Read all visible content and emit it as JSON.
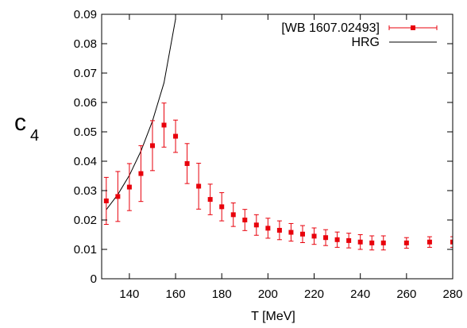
{
  "chart_data": {
    "type": "scatter",
    "title": "",
    "xlabel": "T [MeV]",
    "ylabel": {
      "main": "c",
      "sub": "4"
    },
    "xlim": [
      128,
      280
    ],
    "ylim": [
      0,
      0.09
    ],
    "x_ticks": [
      140,
      160,
      180,
      200,
      220,
      240,
      260,
      280
    ],
    "y_ticks": [
      0,
      0.01,
      0.02,
      0.03,
      0.04,
      0.05,
      0.06,
      0.07,
      0.08,
      0.09
    ],
    "x_tick_labels": [
      "140",
      "160",
      "180",
      "200",
      "220",
      "240",
      "260",
      "280"
    ],
    "y_tick_labels": [
      "0",
      "0.01",
      "0.02",
      "0.03",
      "0.04",
      "0.05",
      "0.06",
      "0.07",
      "0.08",
      "0.09"
    ],
    "grid": false,
    "legend_position": "top-right",
    "series": [
      {
        "name": "[WB 1607.02493]",
        "style": "points-with-errorbars",
        "color": "#e8000b",
        "points": [
          {
            "x": 130,
            "y": 0.0265,
            "yerr": 0.008
          },
          {
            "x": 135,
            "y": 0.028,
            "yerr": 0.0085
          },
          {
            "x": 140,
            "y": 0.0312,
            "yerr": 0.008
          },
          {
            "x": 145,
            "y": 0.0358,
            "yerr": 0.0095
          },
          {
            "x": 150,
            "y": 0.0453,
            "yerr": 0.0085
          },
          {
            "x": 155,
            "y": 0.0523,
            "yerr": 0.0075
          },
          {
            "x": 160,
            "y": 0.0485,
            "yerr": 0.0055
          },
          {
            "x": 165,
            "y": 0.0392,
            "yerr": 0.0068
          },
          {
            "x": 170,
            "y": 0.0315,
            "yerr": 0.0078
          },
          {
            "x": 175,
            "y": 0.027,
            "yerr": 0.0052
          },
          {
            "x": 180,
            "y": 0.0245,
            "yerr": 0.0048
          },
          {
            "x": 185,
            "y": 0.0218,
            "yerr": 0.004
          },
          {
            "x": 190,
            "y": 0.02,
            "yerr": 0.0036
          },
          {
            "x": 195,
            "y": 0.0183,
            "yerr": 0.0035
          },
          {
            "x": 200,
            "y": 0.0172,
            "yerr": 0.0034
          },
          {
            "x": 205,
            "y": 0.0165,
            "yerr": 0.0032
          },
          {
            "x": 210,
            "y": 0.0158,
            "yerr": 0.003
          },
          {
            "x": 215,
            "y": 0.0152,
            "yerr": 0.0029
          },
          {
            "x": 220,
            "y": 0.0145,
            "yerr": 0.0028
          },
          {
            "x": 225,
            "y": 0.014,
            "yerr": 0.0027
          },
          {
            "x": 230,
            "y": 0.0133,
            "yerr": 0.0026
          },
          {
            "x": 235,
            "y": 0.013,
            "yerr": 0.0025
          },
          {
            "x": 240,
            "y": 0.0125,
            "yerr": 0.0025
          },
          {
            "x": 245,
            "y": 0.0122,
            "yerr": 0.0024
          },
          {
            "x": 250,
            "y": 0.0122,
            "yerr": 0.0024
          },
          {
            "x": 260,
            "y": 0.0122,
            "yerr": 0.0018
          },
          {
            "x": 270,
            "y": 0.0125,
            "yerr": 0.0018
          },
          {
            "x": 280,
            "y": 0.0125,
            "yerr": 0.0018
          }
        ]
      },
      {
        "name": "HRG",
        "style": "line",
        "color": "#000000",
        "points": [
          {
            "x": 130,
            "y": 0.0235
          },
          {
            "x": 135,
            "y": 0.0287
          },
          {
            "x": 140,
            "y": 0.0352
          },
          {
            "x": 145,
            "y": 0.0434
          },
          {
            "x": 150,
            "y": 0.0537
          },
          {
            "x": 155,
            "y": 0.0667
          },
          {
            "x": 160,
            "y": 0.0885
          }
        ]
      }
    ]
  }
}
